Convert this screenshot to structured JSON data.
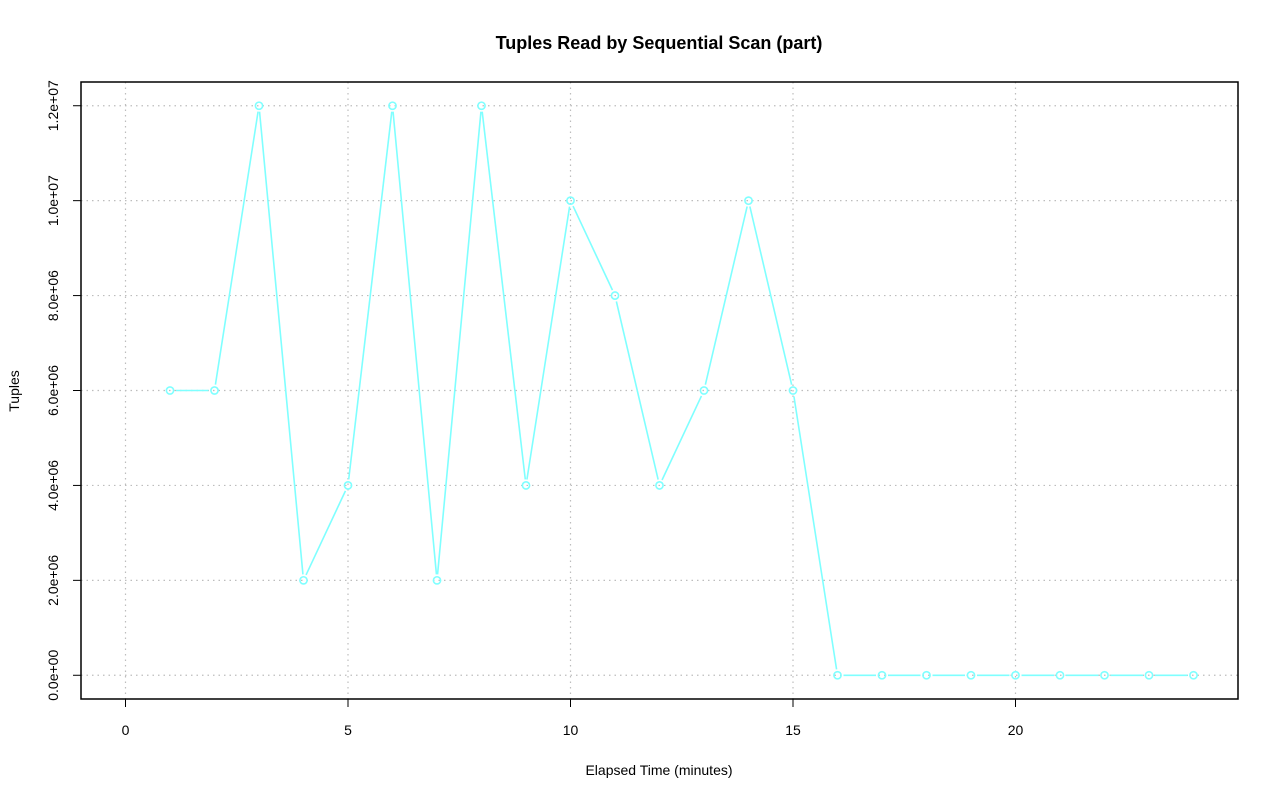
{
  "chart_data": {
    "type": "line",
    "title": "Tuples Read by Sequential Scan (part)",
    "xlabel": "Elapsed Time (minutes)",
    "ylabel": "Tuples",
    "xlim": [
      -1,
      25
    ],
    "ylim": [
      -500000,
      12500000
    ],
    "x_ticks": [
      0,
      5,
      10,
      15,
      20
    ],
    "x_tick_labels": [
      "0",
      "5",
      "10",
      "15",
      "20"
    ],
    "y_ticks": [
      0,
      2000000,
      4000000,
      6000000,
      8000000,
      10000000,
      12000000
    ],
    "y_tick_labels": [
      "0.0e+00",
      "2.0e+06",
      "4.0e+06",
      "6.0e+06",
      "8.0e+06",
      "1.0e+07",
      "1.2e+07"
    ],
    "grid": true,
    "color": "#7fffff",
    "x": [
      1,
      2,
      3,
      4,
      5,
      6,
      7,
      8,
      9,
      10,
      11,
      12,
      13,
      14,
      15,
      16,
      17,
      18,
      19,
      20,
      21,
      22,
      23,
      24
    ],
    "y": [
      6000000,
      6000000,
      12000000,
      2000000,
      4000000,
      12000000,
      2000000,
      12000000,
      4000000,
      10000000,
      8000000,
      4000000,
      6000000,
      10000000,
      6000000,
      0,
      0,
      0,
      0,
      0,
      0,
      0,
      0,
      0
    ]
  }
}
